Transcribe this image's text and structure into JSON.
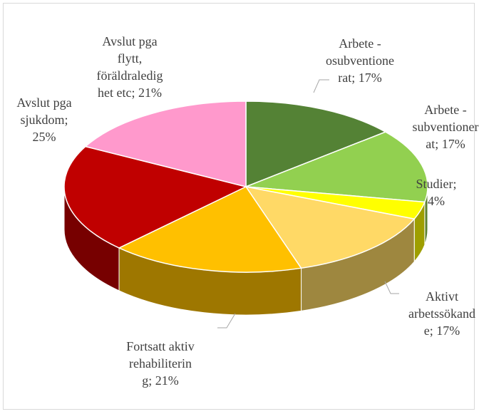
{
  "chart_data": {
    "type": "pie3d",
    "labels": [
      "Arbete - osubventionerat; 17%",
      "Arbete - subventionerat; 17%",
      "Studier; 4%",
      "Aktivt arbetssökande; 17%",
      "Fortsatt aktiv rehabilitering; 21%",
      "Avslut pga sjukdom; 25%",
      "Avslut pga flytt, föräldraledighet etc; 21%"
    ],
    "values": [
      17,
      17,
      4,
      17,
      21,
      25,
      21
    ],
    "colors": [
      "#548235",
      "#92d050",
      "#ffff00",
      "#ffd966",
      "#ffc000",
      "#c00000",
      "#ff99cc"
    ]
  }
}
